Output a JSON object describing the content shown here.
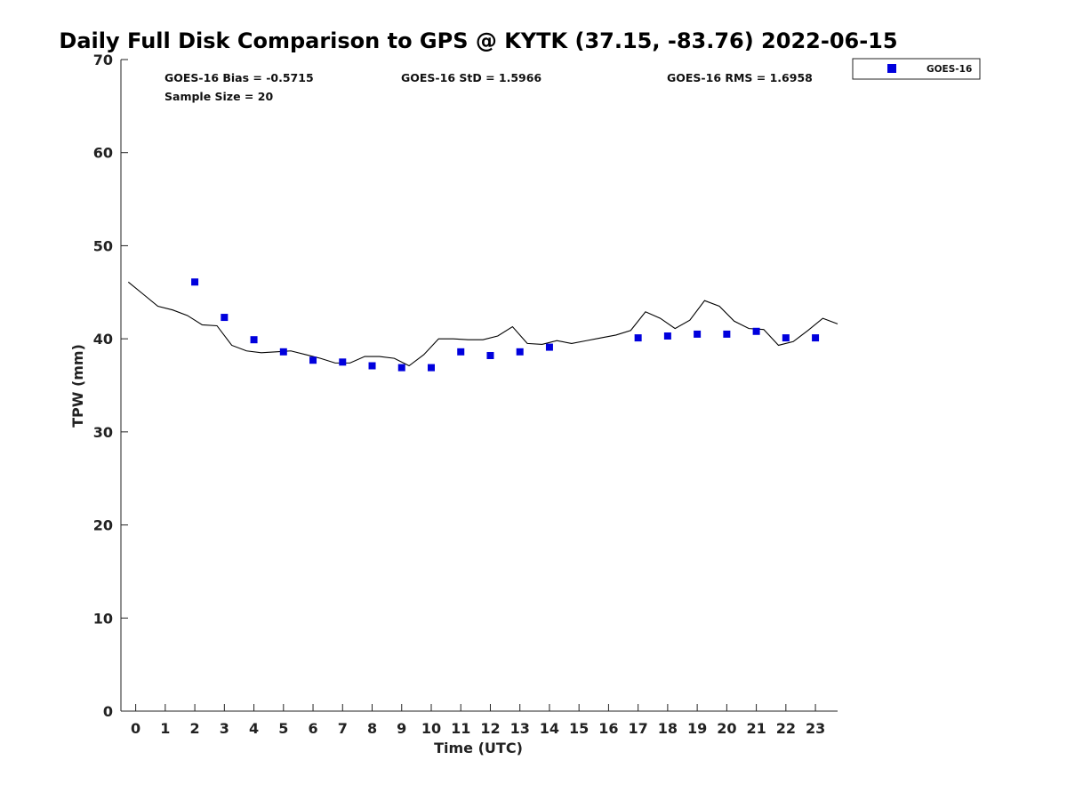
{
  "chart_data": {
    "type": "scatter",
    "title": "Daily Full Disk Comparison to GPS @ KYTK (37.15, -83.76) 2022-06-15",
    "xlabel": "Time (UTC)",
    "ylabel": "TPW (mm)",
    "xlim": [
      -0.5,
      23.75
    ],
    "ylim": [
      0,
      70
    ],
    "x_ticks": [
      "0",
      "1",
      "2",
      "3",
      "4",
      "5",
      "6",
      "7",
      "8",
      "9",
      "10",
      "11",
      "12",
      "13",
      "14",
      "15",
      "16",
      "17",
      "18",
      "19",
      "20",
      "21",
      "22",
      "23"
    ],
    "y_ticks": [
      "0",
      "10",
      "20",
      "30",
      "40",
      "50",
      "60",
      "70"
    ],
    "grid": false,
    "legend_position": "outside top-right",
    "stats": {
      "bias": "GOES-16 Bias = -0.5715",
      "std": "GOES-16 StD = 1.5966",
      "rms": "GOES-16 RMS = 1.6958",
      "sample_size": "Sample Size = 20"
    },
    "series": [
      {
        "name": "GOES-16",
        "kind": "scatter",
        "color": "#0000dd",
        "x": [
          2,
          3,
          4,
          5,
          6,
          7,
          8,
          9,
          10,
          11,
          12,
          13,
          14,
          17,
          18,
          19,
          20,
          21,
          22,
          23
        ],
        "y": [
          46.1,
          42.3,
          39.9,
          38.6,
          37.7,
          37.5,
          37.1,
          36.9,
          36.9,
          38.6,
          38.2,
          38.6,
          39.1,
          40.1,
          40.3,
          40.5,
          40.5,
          40.8,
          40.1,
          40.1
        ]
      },
      {
        "kind": "line",
        "color": "#000000",
        "x": [
          -0.25,
          0.25,
          0.75,
          1.25,
          1.75,
          2.25,
          2.75,
          3.25,
          3.75,
          4.25,
          4.75,
          5.25,
          5.75,
          6.25,
          6.75,
          7.25,
          7.75,
          8.25,
          8.75,
          9.25,
          9.75,
          10.25,
          10.75,
          11.25,
          11.75,
          12.25,
          12.75,
          13.25,
          13.75,
          14.25,
          14.75,
          15.25,
          15.75,
          16.25,
          16.75,
          17.25,
          17.75,
          18.25,
          18.75,
          19.25,
          19.75,
          20.25,
          20.75,
          21.25,
          21.75,
          22.25,
          22.75,
          23.25,
          23.75
        ],
        "y": [
          46.1,
          44.8,
          43.5,
          43.1,
          42.5,
          41.5,
          41.4,
          39.3,
          38.7,
          38.5,
          38.6,
          38.7,
          38.3,
          37.9,
          37.4,
          37.4,
          38.1,
          38.1,
          37.9,
          37.1,
          38.3,
          40.0,
          40.0,
          39.9,
          39.9,
          40.3,
          41.3,
          39.5,
          39.4,
          39.8,
          39.5,
          39.8,
          40.1,
          40.4,
          40.9,
          42.9,
          42.2,
          41.1,
          42.0,
          44.1,
          43.5,
          41.9,
          41.1,
          41.0,
          39.3,
          39.7,
          40.9,
          42.2,
          41.6
        ]
      }
    ]
  }
}
